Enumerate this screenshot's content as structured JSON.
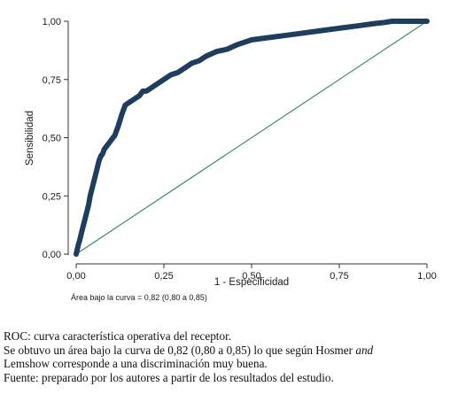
{
  "chart_data": {
    "type": "line",
    "title": "",
    "xlabel": "1 - Especificidad",
    "ylabel": "Sensibilidad",
    "xlim": [
      0,
      1
    ],
    "ylim": [
      0,
      1
    ],
    "x_ticks": [
      "0,00",
      "0,25",
      "0,50",
      "0,75",
      "1,00"
    ],
    "y_ticks": [
      "0,00",
      "0,25",
      "0,50",
      "0,75",
      "1,00"
    ],
    "grid": false,
    "legend": "none",
    "annotation": "Área bajo la curva = 0,82 (0,80 a 0,85)",
    "series": [
      {
        "color": "#1f3d5c",
        "x": [
          0,
          0.003,
          0.006,
          0.01,
          0.015,
          0.02,
          0.025,
          0.03,
          0.035,
          0.04,
          0.045,
          0.05,
          0.055,
          0.06,
          0.065,
          0.07,
          0.075,
          0.08,
          0.09,
          0.1,
          0.11,
          0.12,
          0.13,
          0.14,
          0.15,
          0.16,
          0.17,
          0.18,
          0.19,
          0.2,
          0.21,
          0.22,
          0.23,
          0.25,
          0.27,
          0.29,
          0.31,
          0.33,
          0.35,
          0.37,
          0.4,
          0.43,
          0.46,
          0.5,
          0.55,
          0.6,
          0.65,
          0.7,
          0.75,
          0.8,
          0.85,
          0.88,
          0.9,
          1.0
        ],
        "y": [
          0,
          0.02,
          0.04,
          0.06,
          0.09,
          0.12,
          0.15,
          0.18,
          0.21,
          0.25,
          0.28,
          0.31,
          0.34,
          0.37,
          0.4,
          0.42,
          0.43,
          0.45,
          0.47,
          0.49,
          0.51,
          0.55,
          0.6,
          0.64,
          0.65,
          0.66,
          0.67,
          0.68,
          0.7,
          0.7,
          0.71,
          0.72,
          0.73,
          0.75,
          0.77,
          0.78,
          0.8,
          0.82,
          0.83,
          0.85,
          0.87,
          0.88,
          0.9,
          0.92,
          0.93,
          0.94,
          0.95,
          0.96,
          0.97,
          0.98,
          0.99,
          0.995,
          1.0,
          1.0
        ]
      },
      {
        "color": "#3a8a78",
        "x": [
          0,
          1
        ],
        "y": [
          0,
          1
        ]
      }
    ]
  },
  "caption": {
    "line1": "ROC: curva característica operativa del receptor.",
    "line2a": "Se obtuvo un área bajo la curva de 0,82 (0,80 a 0,85) lo que según Hosmer ",
    "line2b": "and",
    "line3": "Lemshow corresponde a una discriminación muy buena.",
    "line4": "Fuente: preparado por los autores a partir de los resultados del estudio."
  }
}
